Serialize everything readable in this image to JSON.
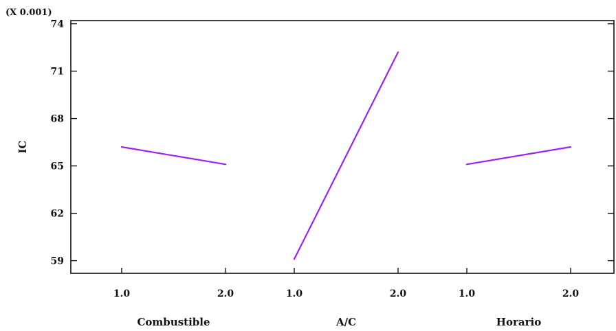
{
  "chart_data": {
    "type": "line",
    "scale_note": "(X 0.001)",
    "ylabel": "IC",
    "ylim": [
      58.2,
      74.2
    ],
    "yticks": [
      59,
      62,
      65,
      68,
      71,
      74
    ],
    "line_color": "#a020f0",
    "factors": [
      {
        "name": "Combustible",
        "levels": [
          "1.0",
          "2.0"
        ],
        "values": [
          66.2,
          65.1
        ]
      },
      {
        "name": "A/C",
        "levels": [
          "1.0",
          "2.0"
        ],
        "values": [
          59.1,
          72.2
        ]
      },
      {
        "name": "Horario",
        "levels": [
          "1.0",
          "2.0"
        ],
        "values": [
          65.1,
          66.2
        ]
      }
    ]
  }
}
